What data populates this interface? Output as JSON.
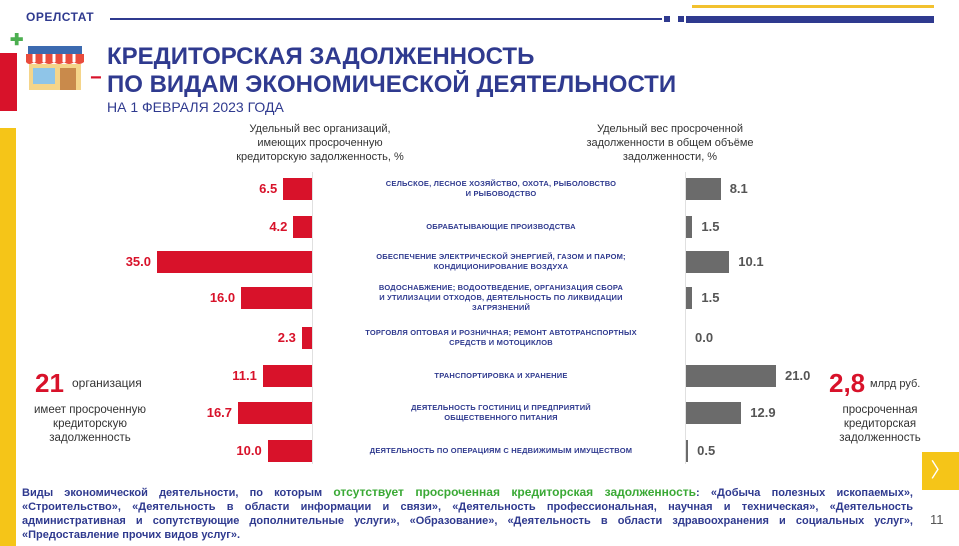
{
  "header": {
    "org": "ОРЕЛСТАТ"
  },
  "title": {
    "line1": "КРЕДИТОРСКАЯ ЗАДОЛЖЕННОСТЬ",
    "line2": "ПО ВИДАМ ЭКОНОМИЧЕСКОЙ ДЕЯТЕЛЬНОСТИ",
    "subtitle": "НА 1 ФЕВРАЛЯ 2023 ГОДА"
  },
  "columns": {
    "left": [
      "Удельный вес организаций,",
      "имеющих просроченную",
      "кредиторскую задолженность, %"
    ],
    "right": [
      "Удельный вес просроченной",
      "задолженности в общем объёме",
      "задолженности, %"
    ]
  },
  "categories": [
    {
      "lines": [
        "СЕЛЬСКОЕ, ЛЕСНОЕ ХОЗЯЙСТВО, ОХОТА, РЫБОЛОВСТВО",
        "И РЫБОВОДСТВО"
      ],
      "left_label": "6.5",
      "right_label": "8.1"
    },
    {
      "lines": [
        "ОБРАБАТЫВАЮЩИЕ ПРОИЗВОДСТВА"
      ],
      "left_label": "4.2",
      "right_label": "1.5"
    },
    {
      "lines": [
        "ОБЕСПЕЧЕНИЕ ЭЛЕКТРИЧЕСКОЙ ЭНЕРГИЕЙ, ГАЗОМ И ПАРОМ;",
        "КОНДИЦИОНИРОВАНИЕ ВОЗДУХА"
      ],
      "left_label": "35.0",
      "right_label": "10.1"
    },
    {
      "lines": [
        "ВОДОСНАБЖЕНИЕ; ВОДООТВЕДЕНИЕ, ОРГАНИЗАЦИЯ СБОРА",
        "И УТИЛИЗАЦИИ ОТХОДОВ, ДЕЯТЕЛЬНОСТЬ ПО ЛИКВИДАЦИИ",
        "ЗАГРЯЗНЕНИЙ"
      ],
      "left_label": "16.0",
      "right_label": "1.5"
    },
    {
      "lines": [
        "ТОРГОВЛЯ ОПТОВАЯ И РОЗНИЧНАЯ; РЕМОНТ АВТОТРАНСПОРТНЫХ",
        "СРЕДСТВ И МОТОЦИКЛОВ"
      ],
      "left_label": "2.3",
      "right_label": "0.0"
    },
    {
      "lines": [
        "ТРАНСПОРТИРОВКА И ХРАНЕНИЕ"
      ],
      "left_label": "11.1",
      "right_label": "21.0"
    },
    {
      "lines": [
        "ДЕЯТЕЛЬНОСТЬ ГОСТИНИЦ И ПРЕДПРИЯТИЙ",
        "ОБЩЕСТВЕННОГО ПИТАНИЯ"
      ],
      "left_label": "16.7",
      "right_label": "12.9"
    },
    {
      "lines": [
        "ДЕЯТЕЛЬНОСТЬ ПО ОПЕРАЦИЯМ С НЕДВИЖИМЫМ ИМУЩЕСТВОМ"
      ],
      "left_label": "10.0",
      "right_label": "0.5"
    }
  ],
  "chart_data": {
    "type": "bar",
    "categories": [
      "СЕЛЬСКОЕ, ЛЕСНОЕ ХОЗЯЙСТВО, ОХОТА, РЫБОЛОВСТВО И РЫБОВОДСТВО",
      "ОБРАБАТЫВАЮЩИЕ ПРОИЗВОДСТВА",
      "ОБЕСПЕЧЕНИЕ ЭЛЕКТРИЧЕСКОЙ ЭНЕРГИЕЙ, ГАЗОМ И ПАРОМ; КОНДИЦИОНИРОВАНИЕ ВОЗДУХА",
      "ВОДОСНАБЖЕНИЕ; ВОДООТВЕДЕНИЕ, ОРГАНИЗАЦИЯ СБОРА И УТИЛИЗАЦИИ ОТХОДОВ, ДЕЯТЕЛЬНОСТЬ ПО ЛИКВИДАЦИИ ЗАГРЯЗНЕНИЙ",
      "ТОРГОВЛЯ ОПТОВАЯ И РОЗНИЧНАЯ; РЕМОНТ АВТОТРАНСПОРТНЫХ СРЕДСТВ И МОТОЦИКЛОВ",
      "ТРАНСПОРТИРОВКА И ХРАНЕНИЕ",
      "ДЕЯТЕЛЬНОСТЬ ГОСТИНИЦ И ПРЕДПРИЯТИЙ ОБЩЕСТВЕННОГО ПИТАНИЯ",
      "ДЕЯТЕЛЬНОСТЬ ПО ОПЕРАЦИЯМ С НЕДВИЖИМЫМ ИМУЩЕСТВОМ"
    ],
    "series": [
      {
        "name": "Удельный вес организаций, имеющих просроченную кредиторскую задолженность, %",
        "values": [
          6.5,
          4.2,
          35.0,
          16.0,
          2.3,
          11.1,
          16.7,
          10.0
        ]
      },
      {
        "name": "Удельный вес просроченной задолженности в общем объёме задолженности, %",
        "values": [
          8.1,
          1.5,
          10.1,
          1.5,
          0.0,
          21.0,
          12.9,
          0.5
        ]
      }
    ],
    "colors": [
      "#d8122a",
      "#6b6b6b"
    ]
  },
  "left_callout": {
    "number": "21",
    "unit": "организация",
    "text": [
      "имеет просроченную",
      "кредиторскую",
      "задолженность"
    ]
  },
  "right_callout": {
    "number": "2,8",
    "unit": "млрд руб.",
    "text": [
      "просроченная",
      "кредиторская",
      "задолженность"
    ]
  },
  "bottom": {
    "part1": "Виды экономической деятельности, по которым ",
    "highlight": "отсутствует просроченная кредиторская задолженность",
    "part2": ": «Добыча полезных ископаемых», «Строительство», «Деятельность в области информации и связи», «Деятельность профессиональная, научная и техническая», «Деятельность административная и сопутствующие дополнительные услуги», «Образование», «Деятельность в области здравоохранения и социальных услуг», «Предоставление прочих видов услуг»."
  },
  "page_number": "11",
  "icons": {
    "store": "store-icon",
    "next": "chevron-right-icon"
  },
  "colors": {
    "primary": "#2f3a8f",
    "accent_red": "#d8122a",
    "accent_yellow": "#f5c518",
    "green": "#3aa935"
  }
}
